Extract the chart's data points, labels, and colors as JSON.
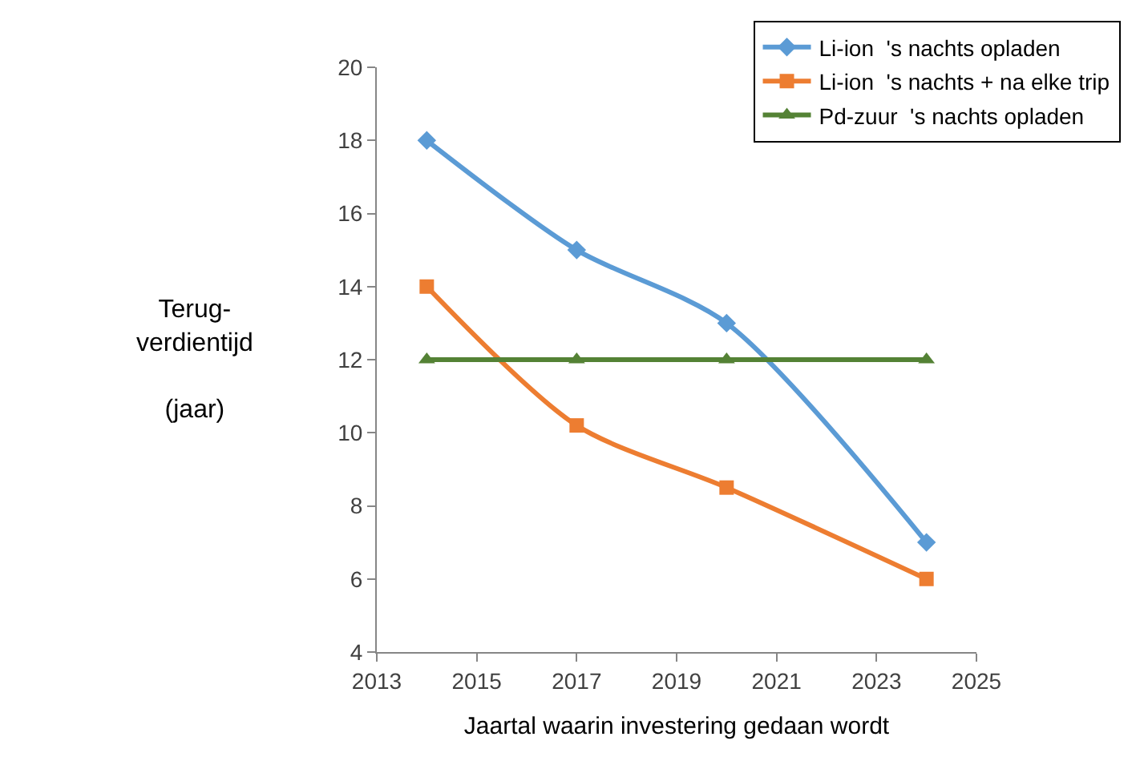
{
  "chart_data": {
    "type": "line",
    "ylabel": "Terug-\nverdientijd\n\n(jaar)",
    "xlabel": "Jaartal waarin investering gedaan wordt",
    "x": [
      2014,
      2017,
      2020,
      2024
    ],
    "series": [
      {
        "name": "Li-ion  's nachts opladen",
        "color": "#5b9bd5",
        "values": [
          18,
          15,
          13,
          7
        ],
        "marker": "diamond"
      },
      {
        "name": "Li-ion  's nachts + na elke trip",
        "color": "#ed7d31",
        "values": [
          14,
          10.2,
          8.5,
          6
        ],
        "marker": "square"
      },
      {
        "name": "Pd-zuur  's nachts opladen",
        "color": "#548235",
        "values": [
          12,
          12,
          12,
          12
        ],
        "marker": "triangle"
      }
    ],
    "xlim": [
      2013,
      2025
    ],
    "xticks": [
      2013,
      2015,
      2017,
      2019,
      2021,
      2023,
      2025
    ],
    "ylim": [
      4,
      20
    ],
    "yticks": [
      4,
      6,
      8,
      10,
      12,
      14,
      16,
      18,
      20
    ],
    "legend": "top right"
  }
}
